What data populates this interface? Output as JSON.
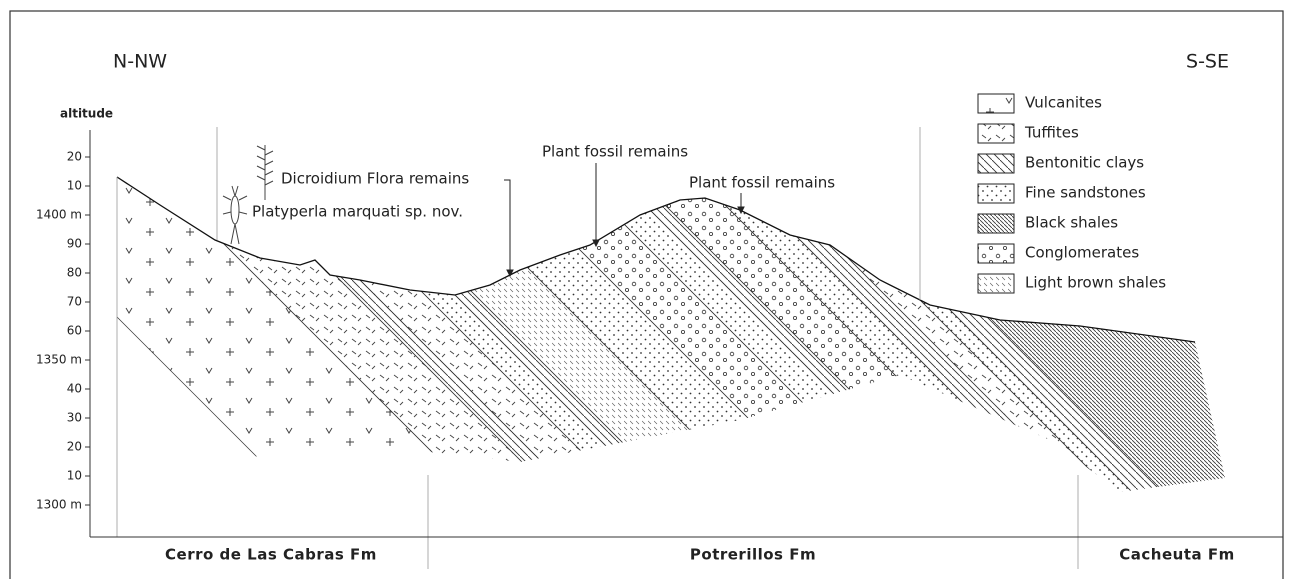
{
  "directions": {
    "left": "N-NW",
    "right": "S-SE"
  },
  "axis": {
    "label": "altitude",
    "ticks": [
      "20",
      "10",
      "1400 m",
      "90",
      "80",
      "70",
      "60",
      "1350 m",
      "40",
      "30",
      "20",
      "10",
      "1300 m"
    ]
  },
  "annotations": {
    "dicroidium": "Dicroidium Flora remains",
    "platyperla": "Platyperla marquati sp. nov.",
    "plant_fossil_1": "Plant fossil remains",
    "plant_fossil_2": "Plant fossil remains"
  },
  "legend": [
    "Vulcanites",
    "Tuffites",
    "Bentonitic clays",
    "Fine sandstones",
    "Black shales",
    "Conglomerates",
    "Light brown shales"
  ],
  "formations": [
    "Cerro de Las Cabras Fm",
    "Potrerillos Fm",
    "Cacheuta Fm"
  ]
}
